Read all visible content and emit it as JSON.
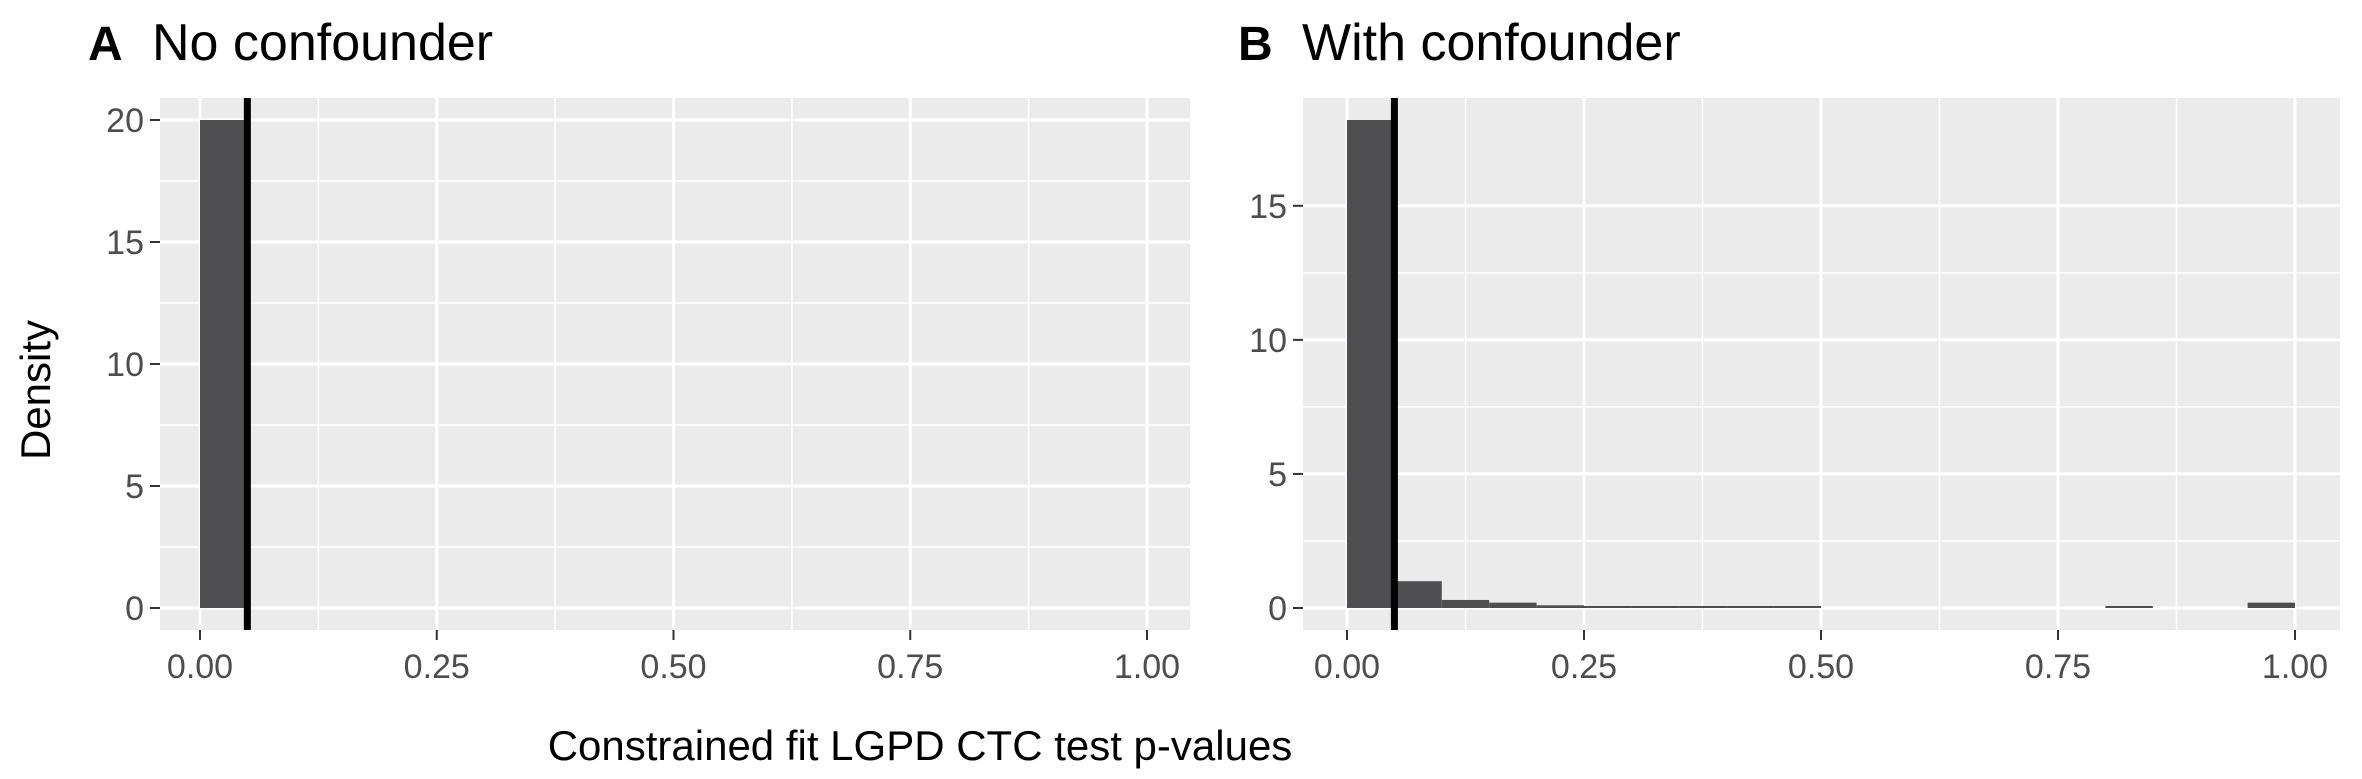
{
  "xlabel": "Constrained fit LGPD CTC test p-values",
  "ylabel": "Density",
  "colors": {
    "panel_bg": "#ebebeb",
    "grid": "#ffffff",
    "bar": "#4f4e50",
    "reference_line": "#000000",
    "tick_text": "#4d4d4d"
  },
  "chart_data": [
    {
      "type": "bar",
      "panel": "A",
      "title": "No confounder",
      "xlim": [
        0,
        1
      ],
      "ylim": [
        0,
        20
      ],
      "x_ticks": [
        "0.00",
        "0.25",
        "0.50",
        "0.75",
        "1.00"
      ],
      "y_ticks": [
        "0",
        "5",
        "10",
        "15",
        "20"
      ],
      "bin_width": 0.05,
      "bins": [
        {
          "x_start": 0.0,
          "x_end": 0.05,
          "density": 20.0
        }
      ],
      "reference_line_x": 0.05,
      "grid": true
    },
    {
      "type": "bar",
      "panel": "B",
      "title": "With confounder",
      "xlim": [
        0,
        1
      ],
      "ylim": [
        0,
        18.2
      ],
      "x_ticks": [
        "0.00",
        "0.25",
        "0.50",
        "0.75",
        "1.00"
      ],
      "y_ticks": [
        "0",
        "5",
        "10",
        "15"
      ],
      "bin_width": 0.05,
      "bins": [
        {
          "x_start": 0.0,
          "x_end": 0.05,
          "density": 18.2
        },
        {
          "x_start": 0.05,
          "x_end": 0.1,
          "density": 1.0
        },
        {
          "x_start": 0.1,
          "x_end": 0.15,
          "density": 0.3
        },
        {
          "x_start": 0.15,
          "x_end": 0.2,
          "density": 0.2
        },
        {
          "x_start": 0.2,
          "x_end": 0.25,
          "density": 0.1
        },
        {
          "x_start": 0.25,
          "x_end": 0.3,
          "density": 0.05
        },
        {
          "x_start": 0.3,
          "x_end": 0.35,
          "density": 0.05
        },
        {
          "x_start": 0.35,
          "x_end": 0.4,
          "density": 0.05
        },
        {
          "x_start": 0.4,
          "x_end": 0.45,
          "density": 0.05
        },
        {
          "x_start": 0.45,
          "x_end": 0.5,
          "density": 0.05
        },
        {
          "x_start": 0.8,
          "x_end": 0.85,
          "density": 0.05
        },
        {
          "x_start": 0.95,
          "x_end": 1.0,
          "density": 0.2
        }
      ],
      "reference_line_x": 0.05,
      "grid": true
    }
  ]
}
